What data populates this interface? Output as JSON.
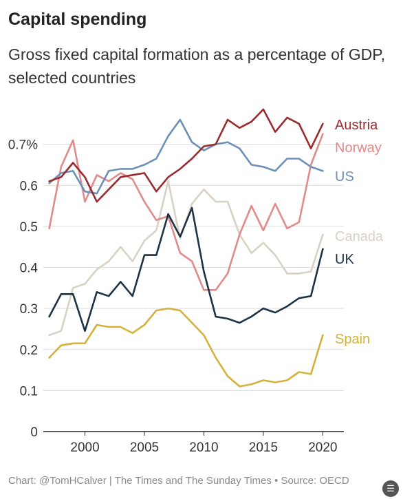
{
  "title": "Capital spending",
  "subtitle": "Gross fixed capital formation as a percentage of GDP, selected countries",
  "footer": "Chart: @TomHCalver | The Times and The Sunday Times • Source: OECD",
  "icons": {
    "corner": "chat-bubble-icon"
  },
  "chart_data": {
    "type": "line",
    "grid": true,
    "legend": "inline-right",
    "xlim": [
      1996.5,
      2020.5
    ],
    "ylim": [
      0,
      0.8
    ],
    "x_ticks": [
      2000,
      2005,
      2010,
      2015,
      2020
    ],
    "x_tick_labels": [
      "2000",
      "2005",
      "2010",
      "2015",
      "2020"
    ],
    "y_ticks": [
      0,
      0.1,
      0.2,
      0.3,
      0.4,
      0.5,
      0.6,
      0.7
    ],
    "y_tick_labels": [
      "0",
      "0.1",
      "0.2",
      "0.3",
      "0.4",
      "0.5",
      "0.6",
      "0.7%"
    ],
    "x": [
      1997,
      1998,
      1999,
      2000,
      2001,
      2002,
      2003,
      2004,
      2005,
      2006,
      2007,
      2008,
      2009,
      2010,
      2011,
      2012,
      2013,
      2014,
      2015,
      2016,
      2017,
      2018,
      2019,
      2020
    ],
    "series": [
      {
        "name": "Austria",
        "color": "#9b2a2f",
        "values": [
          0.61,
          0.62,
          0.655,
          0.62,
          0.56,
          0.59,
          0.62,
          0.625,
          0.63,
          0.585,
          0.62,
          0.64,
          0.665,
          0.695,
          0.7,
          0.76,
          0.74,
          0.755,
          0.785,
          0.73,
          0.765,
          0.75,
          0.69,
          0.75
        ]
      },
      {
        "name": "Norway",
        "color": "#e08a8a",
        "values": [
          0.495,
          0.645,
          0.71,
          0.56,
          0.625,
          0.61,
          0.63,
          0.615,
          0.56,
          0.515,
          0.525,
          0.435,
          0.415,
          0.345,
          0.345,
          0.385,
          0.48,
          0.55,
          0.49,
          0.555,
          0.495,
          0.51,
          0.65,
          0.725
        ]
      },
      {
        "name": "US",
        "color": "#6d90b8",
        "values": [
          0.605,
          0.63,
          0.635,
          0.585,
          0.58,
          0.635,
          0.64,
          0.64,
          0.65,
          0.665,
          0.72,
          0.76,
          0.705,
          0.685,
          0.7,
          0.705,
          0.69,
          0.65,
          0.645,
          0.635,
          0.665,
          0.665,
          0.645,
          0.635
        ]
      },
      {
        "name": "Canada",
        "color": "#d8d1c4",
        "values": [
          0.235,
          0.245,
          0.35,
          0.36,
          0.395,
          0.415,
          0.45,
          0.415,
          0.465,
          0.49,
          0.61,
          0.47,
          0.555,
          0.59,
          0.56,
          0.56,
          0.48,
          0.435,
          0.46,
          0.43,
          0.385,
          0.385,
          0.39,
          0.48
        ]
      },
      {
        "name": "UK",
        "color": "#1d3244",
        "values": [
          0.28,
          0.335,
          0.335,
          0.245,
          0.34,
          0.33,
          0.365,
          0.33,
          0.43,
          0.43,
          0.53,
          0.475,
          0.545,
          0.39,
          0.28,
          0.275,
          0.265,
          0.28,
          0.3,
          0.29,
          0.305,
          0.325,
          0.33,
          0.445
        ]
      },
      {
        "name": "Spain",
        "color": "#d4b23a",
        "values": [
          0.18,
          0.21,
          0.215,
          0.215,
          0.26,
          0.255,
          0.255,
          0.24,
          0.26,
          0.295,
          0.3,
          0.295,
          0.265,
          0.235,
          0.18,
          0.135,
          0.11,
          0.115,
          0.125,
          0.12,
          0.125,
          0.145,
          0.14,
          0.235
        ]
      }
    ]
  }
}
